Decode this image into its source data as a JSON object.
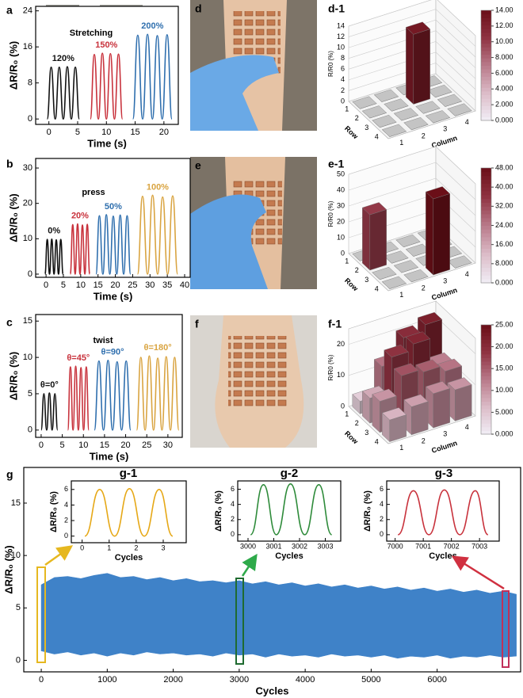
{
  "photo_labels": [
    "d",
    "e",
    "f"
  ],
  "chart_data": [
    {
      "type": "line",
      "label": "a",
      "inset_text": "Stretching",
      "xlabel": "Time (s)",
      "ylabel": "ΔR/R₀ (%)",
      "xlim": [
        -2.3,
        22.5
      ],
      "ylim": [
        -1.2,
        25
      ],
      "xticks": [
        0,
        5,
        10,
        15,
        20
      ],
      "yticks": [
        0,
        8,
        16,
        24
      ],
      "series": [
        {
          "name": "120%",
          "color": "#111111",
          "x": [
            -0.3,
            0.4,
            1.1,
            1.8,
            2.5,
            3.2,
            3.9,
            4.6,
            5.3
          ],
          "values": [
            0,
            11.5,
            0,
            11.5,
            0,
            11.6,
            0,
            11.5,
            0
          ]
        },
        {
          "name": "150%",
          "color": "#c8323c",
          "x": [
            7.2,
            7.9,
            8.6,
            9.3,
            10.0,
            10.7,
            11.4,
            12.1,
            12.8
          ],
          "values": [
            0,
            14.3,
            0,
            14.6,
            0,
            14.5,
            0,
            14.4,
            0
          ]
        },
        {
          "name": "200%",
          "color": "#2f6fae",
          "x": [
            14.6,
            15.45,
            16.3,
            17.15,
            18.0,
            18.85,
            19.7,
            20.55,
            21.4
          ],
          "values": [
            0,
            18.6,
            0,
            18.8,
            0,
            18.5,
            0,
            18.7,
            0
          ]
        }
      ]
    },
    {
      "type": "line",
      "label": "b",
      "inset_text": "press",
      "xlabel": "Time (s)",
      "ylabel": "ΔR/R₀ (%)",
      "xlim": [
        -3,
        41.6
      ],
      "ylim": [
        -0.9,
        32.7
      ],
      "xticks": [
        0,
        5,
        10,
        15,
        20,
        25,
        30,
        35,
        40
      ],
      "yticks": [
        0,
        10,
        20,
        30
      ],
      "series": [
        {
          "name": "0%",
          "color": "#111111",
          "x": [
            -0.3,
            0.35,
            1.0,
            1.65,
            2.3,
            2.95,
            3.6,
            4.25,
            4.9
          ],
          "values": [
            0,
            9.8,
            0,
            9.9,
            0,
            9.7,
            0,
            9.8,
            0
          ]
        },
        {
          "name": "20%",
          "color": "#c8323c",
          "x": [
            7.0,
            7.7,
            8.4,
            9.1,
            9.8,
            10.5,
            11.2,
            11.9,
            12.6
          ],
          "values": [
            0,
            14,
            0,
            14.2,
            0,
            13.9,
            0,
            14.1,
            0
          ]
        },
        {
          "name": "50%",
          "color": "#2f6fae",
          "x": [
            14.4,
            15.4,
            16.4,
            17.4,
            18.4,
            19.4,
            20.4,
            21.4,
            22.4,
            23.4,
            24.4
          ],
          "values": [
            0,
            16.5,
            0,
            16.8,
            0,
            16.4,
            0,
            16.7,
            0,
            16.5,
            0
          ]
        },
        {
          "name": "100%",
          "color": "#d9a441",
          "x": [
            26.4,
            27.85,
            29.3,
            30.75,
            32.2,
            33.65,
            35.1,
            36.55,
            38.0
          ],
          "values": [
            0,
            22,
            0,
            22.3,
            0,
            21.8,
            0,
            22.1,
            0
          ]
        }
      ]
    },
    {
      "type": "line",
      "label": "c",
      "inset_text": "twist",
      "xlabel": "Time (s)",
      "ylabel": "ΔR/R₀ (%)",
      "xlim": [
        -1.3,
        33.4
      ],
      "ylim": [
        -1,
        15.9
      ],
      "xticks": [
        0,
        5,
        10,
        15,
        20,
        25,
        30
      ],
      "yticks": [
        0,
        5,
        10,
        15
      ],
      "series": [
        {
          "name": "θ=0°",
          "color": "#111111",
          "x": [
            0,
            0.65,
            1.3,
            1.95,
            2.6,
            3.25,
            3.9
          ],
          "values": [
            0,
            5,
            0,
            5.1,
            0,
            5,
            0
          ]
        },
        {
          "name": "θ=45°",
          "color": "#c8323c",
          "x": [
            6.3,
            6.93,
            7.55,
            8.18,
            8.8,
            9.43,
            10.05,
            10.68,
            11.3
          ],
          "values": [
            0,
            8.7,
            0,
            8.8,
            0,
            8.6,
            0,
            8.7,
            0
          ]
        },
        {
          "name": "θ=90°",
          "color": "#2f6fae",
          "x": [
            12.6,
            13.68,
            14.75,
            15.83,
            16.9,
            17.98,
            19.05,
            20.13,
            21.2
          ],
          "values": [
            0,
            9.5,
            0,
            9.6,
            0,
            9.4,
            0,
            9.5,
            0
          ]
        },
        {
          "name": "θ=180°",
          "color": "#d9a441",
          "x": [
            22.6,
            23.6,
            24.6,
            25.6,
            26.6,
            27.6,
            28.6,
            29.6,
            30.6,
            31.6,
            32.6
          ],
          "values": [
            0,
            10,
            0,
            10.2,
            0,
            9.9,
            0,
            10.1,
            0,
            10,
            0
          ]
        }
      ]
    },
    {
      "type": "bar3d",
      "label": "d-1",
      "zlabel": "R/R0 (%)",
      "xlabel": "Column",
      "ylabel": "Row",
      "zlim": [
        0,
        14
      ],
      "zticks": [
        0,
        2,
        4,
        6,
        8,
        10,
        12,
        14
      ],
      "row_ticks": [
        1,
        2,
        3,
        4
      ],
      "col_ticks": [
        1,
        2,
        3,
        4
      ],
      "matrix": [
        [
          0,
          0,
          0,
          0
        ],
        [
          0,
          0,
          13,
          0
        ],
        [
          0,
          0,
          0,
          0
        ],
        [
          0,
          0,
          0,
          0
        ]
      ],
      "colormap": [
        "#f1eef6",
        "#dcbcc8",
        "#b97a8a",
        "#8f3342",
        "#6b0f18"
      ],
      "colorbar_ticks": [
        {
          "value": 0,
          "label": "0.000"
        },
        {
          "value": 2,
          "label": "2.000"
        },
        {
          "value": 4,
          "label": "4.000"
        },
        {
          "value": 6,
          "label": "6.000"
        },
        {
          "value": 8,
          "label": "8.000"
        },
        {
          "value": 10,
          "label": "10.00"
        },
        {
          "value": 12,
          "label": "12.00"
        },
        {
          "value": 14,
          "label": "14.00"
        }
      ]
    },
    {
      "type": "bar3d",
      "label": "e-1",
      "zlabel": "R/R0 (%)",
      "xlabel": "Column",
      "ylabel": "Row",
      "zlim": [
        0,
        50
      ],
      "zticks": [
        0,
        10,
        20,
        30,
        40,
        50
      ],
      "row_ticks": [
        1,
        2,
        3,
        4
      ],
      "col_ticks": [
        1,
        2,
        3,
        4
      ],
      "matrix": [
        [
          0,
          0,
          0,
          0
        ],
        [
          35,
          0,
          0,
          0
        ],
        [
          0,
          0,
          0,
          0
        ],
        [
          0,
          0,
          48,
          0
        ]
      ],
      "colormap": [
        "#f1eef6",
        "#dcbcc8",
        "#b97a8a",
        "#8f3342",
        "#6b0f18"
      ],
      "colorbar_ticks": [
        {
          "value": 0,
          "label": "0.000"
        },
        {
          "value": 8,
          "label": "8.000"
        },
        {
          "value": 16,
          "label": "16.00"
        },
        {
          "value": 24,
          "label": "24.00"
        },
        {
          "value": 32,
          "label": "32.00"
        },
        {
          "value": 40,
          "label": "40.00"
        },
        {
          "value": 48,
          "label": "48.00"
        }
      ]
    },
    {
      "type": "bar3d",
      "label": "f-1",
      "zlabel": "R/R0 (%)",
      "xlabel": "Column",
      "ylabel": "Row",
      "zlim": [
        0,
        25
      ],
      "zticks": [
        0,
        10,
        20
      ],
      "row_ticks": [
        1,
        2,
        3,
        4
      ],
      "col_ticks": [
        1,
        2,
        3,
        4
      ],
      "matrix": [
        [
          4,
          13,
          20,
          22
        ],
        [
          8,
          19,
          21,
          12
        ],
        [
          10,
          16,
          15,
          13
        ],
        [
          7,
          9,
          11,
          10
        ]
      ],
      "colormap": [
        "#f1eef6",
        "#dcbcc8",
        "#b97a8a",
        "#8f3342",
        "#6b0f18"
      ],
      "colorbar_ticks": [
        {
          "value": 0,
          "label": "0.000"
        },
        {
          "value": 5,
          "label": "5.000"
        },
        {
          "value": 10,
          "label": "10.00"
        },
        {
          "value": 15,
          "label": "15.00"
        },
        {
          "value": 20,
          "label": "20.00"
        },
        {
          "value": 25,
          "label": "25.00"
        }
      ]
    },
    {
      "type": "band",
      "label": "g",
      "xlabel": "Cycles",
      "ylabel": "ΔR/R₀ (%)",
      "color": "#3f82c8",
      "xlim": [
        -265,
        7265
      ],
      "ylim": [
        -1.1,
        18.4
      ],
      "xticks": [
        0,
        1000,
        2000,
        3000,
        4000,
        5000,
        6000
      ],
      "yticks": [
        0,
        5,
        10,
        15
      ],
      "x": [
        0,
        200,
        400,
        600,
        800,
        1000,
        1200,
        1400,
        1600,
        1800,
        2000,
        2200,
        2400,
        2600,
        2800,
        3000,
        3200,
        3400,
        3600,
        3800,
        4000,
        4200,
        4400,
        4600,
        4800,
        5000,
        5200,
        5400,
        5600,
        5800,
        6000,
        6200,
        6400,
        6600,
        6800,
        7000,
        7200
      ],
      "upper": [
        7.2,
        7.9,
        8.0,
        7.8,
        8.1,
        8.3,
        7.9,
        8.0,
        7.7,
        7.9,
        7.6,
        7.8,
        7.5,
        7.6,
        7.4,
        7.6,
        7.3,
        7.5,
        7.2,
        7.4,
        7.1,
        7.3,
        7.0,
        7.2,
        6.9,
        7.1,
        6.8,
        7.0,
        6.7,
        6.9,
        6.6,
        6.8,
        6.5,
        6.7,
        6.4,
        6.6,
        6.3
      ],
      "lower": [
        0.9,
        0.6,
        0.8,
        0.5,
        0.7,
        0.4,
        0.7,
        0.5,
        0.8,
        0.6,
        0.7,
        0.5,
        0.6,
        0.4,
        0.7,
        0.5,
        0.6,
        0.3,
        0.6,
        0.4,
        0.5,
        0.3,
        0.6,
        0.4,
        0.5,
        0.3,
        0.5,
        0.2,
        0.4,
        0.3,
        0.5,
        0.2,
        0.4,
        0.3,
        0.5,
        0.3,
        0.4
      ]
    },
    {
      "type": "line",
      "label": "g-1",
      "xlabel": "Cycles",
      "ylabel": "ΔR/R₀ (%)",
      "xlim": [
        -0.4,
        3.85
      ],
      "ylim": [
        -0.85,
        7.1
      ],
      "xticks": [
        0,
        1,
        2,
        3
      ],
      "yticks": [
        0,
        2,
        4,
        6
      ],
      "series": [
        {
          "color": "#e6a817",
          "x": [
            0.1,
            0.65,
            1.2,
            1.75,
            2.3,
            2.85,
            3.35
          ],
          "values": [
            0,
            6,
            0,
            6.1,
            0,
            6,
            0
          ]
        }
      ]
    },
    {
      "type": "line",
      "label": "g-2",
      "xlabel": "Cycles",
      "ylabel": "ΔR/R₀ (%)",
      "xlim": [
        2999.6,
        3003.6
      ],
      "ylim": [
        -0.85,
        7.1
      ],
      "xticks": [
        3000,
        3001,
        3002,
        3003
      ],
      "yticks": [
        0,
        2,
        4,
        6
      ],
      "series": [
        {
          "color": "#2e8b3a",
          "x": [
            3000.1,
            3000.6,
            3001.1,
            3001.65,
            3002.2,
            3002.75,
            3003.25
          ],
          "values": [
            0,
            6.6,
            0,
            6.7,
            0,
            6.6,
            0
          ]
        }
      ]
    },
    {
      "type": "line",
      "label": "g-3",
      "xlabel": "Cycles",
      "ylabel": "ΔR/R₀ (%)",
      "xlim": [
        6999.7,
        7003.7
      ],
      "ylim": [
        -0.85,
        7.1
      ],
      "xticks": [
        7000,
        7001,
        7002,
        7003
      ],
      "yticks": [
        0,
        2,
        4,
        6
      ],
      "series": [
        {
          "color": "#c8323c",
          "x": [
            7000.1,
            7000.65,
            7001.2,
            7001.75,
            7002.3,
            7002.85,
            7003.3
          ],
          "values": [
            0,
            5.8,
            0,
            5.9,
            0,
            5.8,
            0
          ]
        }
      ]
    }
  ]
}
